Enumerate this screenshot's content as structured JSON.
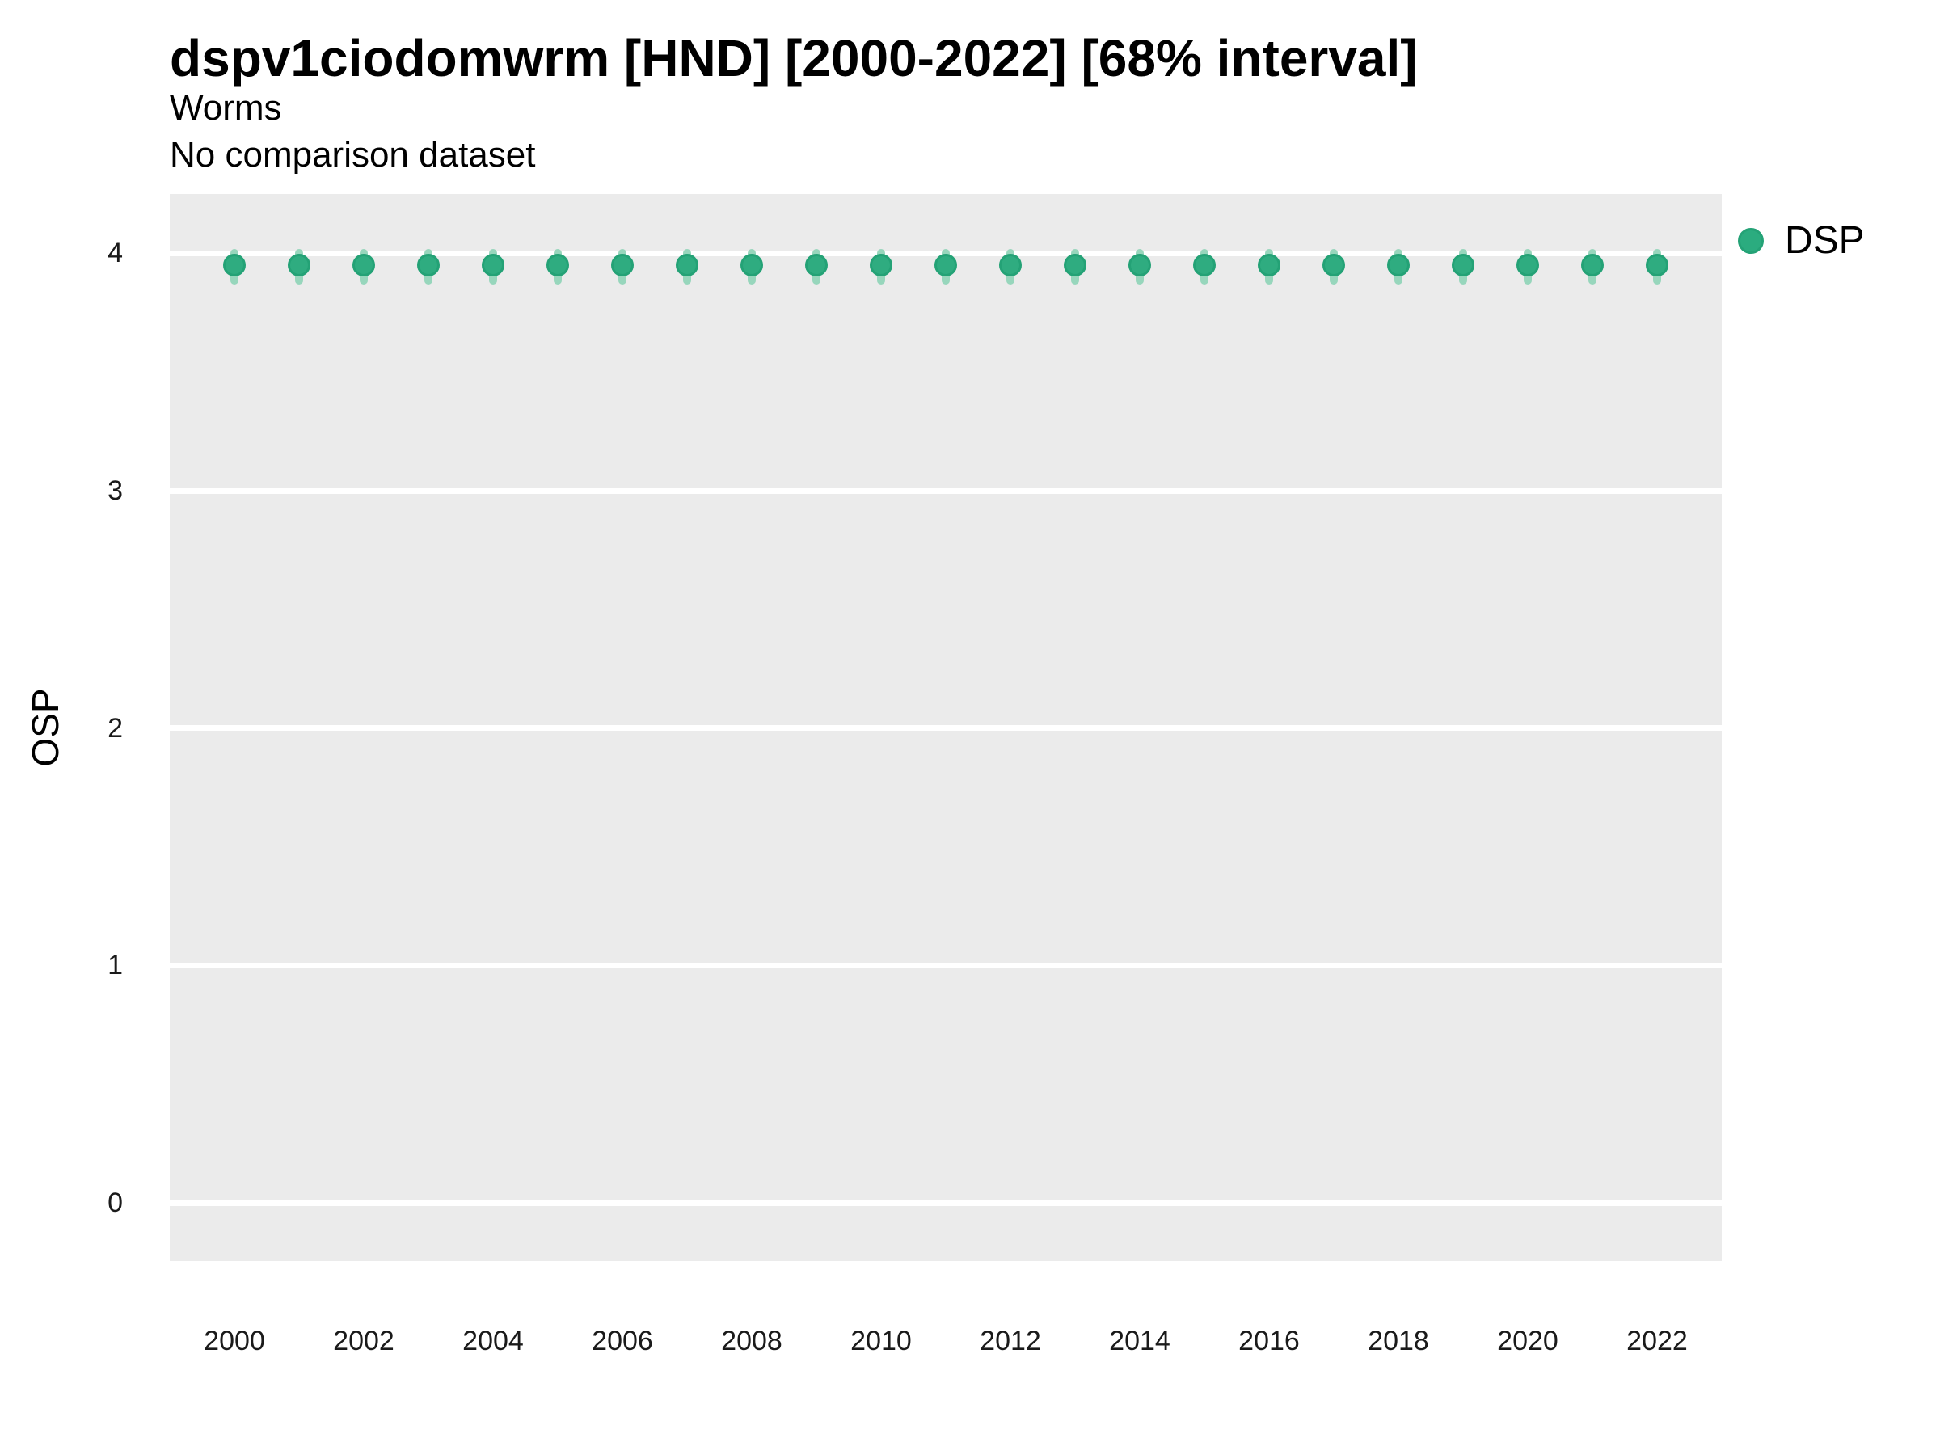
{
  "header": {
    "title": "dspv1ciodomwrm [HND] [2000-2022] [68% interval]",
    "subtitle": "Worms",
    "comparison_note": "No comparison dataset"
  },
  "legend": {
    "position": "right",
    "items": [
      {
        "label": "DSP",
        "color": "#2BAC7F"
      }
    ]
  },
  "colors": {
    "point_fill": "#2FAC80",
    "point_stroke": "#24A276",
    "interval": "#97D6BC",
    "panel_bg": "#EBEBEB",
    "gridline": "#FFFFFF",
    "tick_text": "#1a1a1a"
  },
  "chart_data": {
    "type": "scatter",
    "title": "dspv1ciodomwrm [HND] [2000-2022] [68% interval]",
    "subtitle": "Worms",
    "note": "No comparison dataset",
    "xlabel": "",
    "ylabel": "OSP",
    "interval_label": "68% interval",
    "grid": "horizontal major gridlines, white on gray panel",
    "legend_position": "right",
    "xlim": [
      1999,
      2023
    ],
    "ylim": [
      -0.245,
      4.25
    ],
    "y_ticks": [
      0,
      1,
      2,
      3,
      4
    ],
    "x_tick_labels": [
      "2000",
      "2002",
      "2004",
      "2006",
      "2008",
      "2010",
      "2012",
      "2014",
      "2016",
      "2018",
      "2020",
      "2022"
    ],
    "x_ticks": [
      2000,
      2002,
      2004,
      2006,
      2008,
      2010,
      2012,
      2014,
      2016,
      2018,
      2020,
      2022
    ],
    "x": [
      2000,
      2001,
      2002,
      2003,
      2004,
      2005,
      2006,
      2007,
      2008,
      2009,
      2010,
      2011,
      2012,
      2013,
      2014,
      2015,
      2016,
      2017,
      2018,
      2019,
      2020,
      2021,
      2022
    ],
    "series": [
      {
        "name": "DSP",
        "values": [
          3.95,
          3.95,
          3.95,
          3.95,
          3.95,
          3.95,
          3.95,
          3.95,
          3.95,
          3.95,
          3.95,
          3.95,
          3.95,
          3.95,
          3.95,
          3.95,
          3.95,
          3.95,
          3.95,
          3.95,
          3.95,
          3.95,
          3.95
        ],
        "interval_low": [
          3.87,
          3.87,
          3.87,
          3.87,
          3.87,
          3.87,
          3.87,
          3.87,
          3.87,
          3.87,
          3.87,
          3.87,
          3.87,
          3.87,
          3.87,
          3.87,
          3.87,
          3.87,
          3.87,
          3.87,
          3.87,
          3.87,
          3.87
        ],
        "interval_high": [
          4.02,
          4.02,
          4.02,
          4.02,
          4.02,
          4.02,
          4.02,
          4.02,
          4.02,
          4.02,
          4.02,
          4.02,
          4.02,
          4.02,
          4.02,
          4.02,
          4.02,
          4.02,
          4.02,
          4.02,
          4.02,
          4.02,
          4.02
        ]
      }
    ]
  }
}
